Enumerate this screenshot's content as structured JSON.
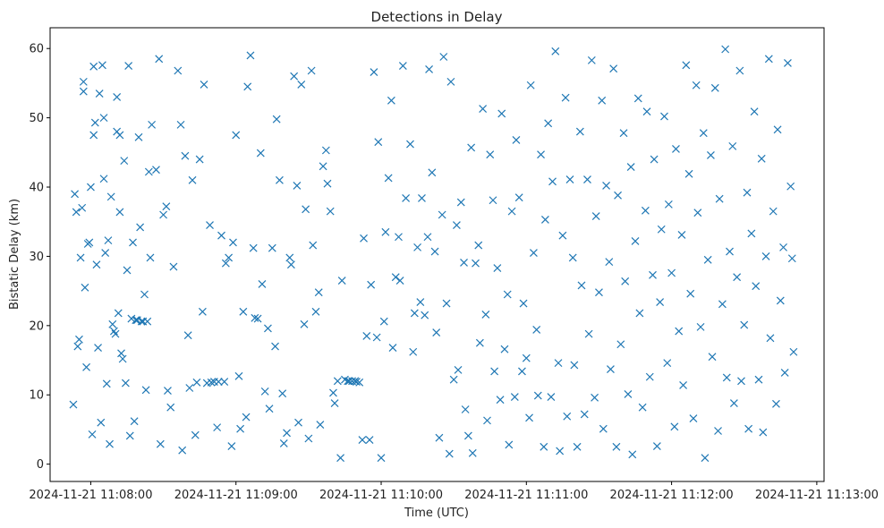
{
  "chart_data": {
    "type": "scatter",
    "title": "Detections in Delay",
    "xlabel": "Time (UTC)",
    "ylabel": "Bistatic Delay (km)",
    "marker": "x",
    "color": "#1f77b4",
    "xlim_minutes": [
      7.72,
      13.05
    ],
    "ylim": [
      -2.5,
      63
    ],
    "x_ticks": [
      {
        "minute": 8,
        "label": "2024-11-21 11:08:00"
      },
      {
        "minute": 9,
        "label": "2024-11-21 11:09:00"
      },
      {
        "minute": 10,
        "label": "2024-11-21 11:10:00"
      },
      {
        "minute": 11,
        "label": "2024-11-21 11:11:00"
      },
      {
        "minute": 12,
        "label": "2024-11-21 11:12:00"
      },
      {
        "minute": 13,
        "label": "2024-11-21 11:13:00"
      }
    ],
    "y_ticks": [
      0,
      10,
      20,
      30,
      40,
      50,
      60
    ],
    "x_unit": "minutes after 11:00:00 UTC",
    "points": [
      [
        7.88,
        8.6
      ],
      [
        7.89,
        39
      ],
      [
        7.9,
        36.4
      ],
      [
        7.91,
        17
      ],
      [
        7.92,
        18
      ],
      [
        7.93,
        29.8
      ],
      [
        7.94,
        37
      ],
      [
        7.95,
        55.2
      ],
      [
        7.95,
        53.8
      ],
      [
        7.96,
        25.5
      ],
      [
        7.97,
        14
      ],
      [
        7.98,
        31.8
      ],
      [
        7.99,
        32
      ],
      [
        8.0,
        40
      ],
      [
        8.01,
        4.3
      ],
      [
        8.02,
        57.4
      ],
      [
        8.02,
        47.5
      ],
      [
        8.03,
        49.3
      ],
      [
        8.04,
        28.8
      ],
      [
        8.05,
        16.8
      ],
      [
        8.06,
        53.5
      ],
      [
        8.07,
        6
      ],
      [
        8.08,
        57.6
      ],
      [
        8.09,
        50
      ],
      [
        8.09,
        41.2
      ],
      [
        8.1,
        30.5
      ],
      [
        8.11,
        11.6
      ],
      [
        8.12,
        32.3
      ],
      [
        8.13,
        2.9
      ],
      [
        8.14,
        38.6
      ],
      [
        8.15,
        20.2
      ],
      [
        8.16,
        19.2
      ],
      [
        8.17,
        18.8
      ],
      [
        8.18,
        53
      ],
      [
        8.18,
        48
      ],
      [
        8.19,
        21.8
      ],
      [
        8.2,
        36.4
      ],
      [
        8.2,
        47.5
      ],
      [
        8.21,
        16
      ],
      [
        8.22,
        15.2
      ],
      [
        8.23,
        43.8
      ],
      [
        8.24,
        11.7
      ],
      [
        8.25,
        28
      ],
      [
        8.26,
        57.5
      ],
      [
        8.27,
        4.1
      ],
      [
        8.28,
        21
      ],
      [
        8.29,
        32
      ],
      [
        8.3,
        6.2
      ],
      [
        8.31,
        20.8
      ],
      [
        8.32,
        20.8
      ],
      [
        8.33,
        47.2
      ],
      [
        8.34,
        34.2
      ],
      [
        8.35,
        20.6
      ],
      [
        8.36,
        20.6
      ],
      [
        8.37,
        24.5
      ],
      [
        8.38,
        10.7
      ],
      [
        8.39,
        20.6
      ],
      [
        8.4,
        42.2
      ],
      [
        8.41,
        29.8
      ],
      [
        8.42,
        49
      ],
      [
        8.45,
        42.5
      ],
      [
        8.47,
        58.5
      ],
      [
        8.48,
        2.9
      ],
      [
        8.5,
        36
      ],
      [
        8.52,
        37.2
      ],
      [
        8.53,
        10.6
      ],
      [
        8.55,
        8.2
      ],
      [
        8.57,
        28.5
      ],
      [
        8.6,
        56.8
      ],
      [
        8.62,
        49
      ],
      [
        8.63,
        2
      ],
      [
        8.65,
        44.5
      ],
      [
        8.67,
        18.6
      ],
      [
        8.68,
        11
      ],
      [
        8.7,
        41
      ],
      [
        8.72,
        4.2
      ],
      [
        8.73,
        11.8
      ],
      [
        8.75,
        44
      ],
      [
        8.77,
        22
      ],
      [
        8.78,
        54.8
      ],
      [
        8.8,
        11.7
      ],
      [
        8.82,
        34.5
      ],
      [
        8.83,
        11.8
      ],
      [
        8.85,
        11.9
      ],
      [
        8.87,
        5.3
      ],
      [
        8.88,
        11.9
      ],
      [
        8.9,
        33
      ],
      [
        8.92,
        11.9
      ],
      [
        8.93,
        29
      ],
      [
        8.95,
        29.8
      ],
      [
        8.97,
        2.6
      ],
      [
        8.98,
        32
      ],
      [
        9.0,
        47.5
      ],
      [
        9.02,
        12.7
      ],
      [
        9.03,
        5.1
      ],
      [
        9.05,
        22
      ],
      [
        9.07,
        6.8
      ],
      [
        9.08,
        54.5
      ],
      [
        9.1,
        59
      ],
      [
        9.12,
        31.2
      ],
      [
        9.13,
        21.1
      ],
      [
        9.15,
        21
      ],
      [
        9.17,
        44.9
      ],
      [
        9.18,
        26
      ],
      [
        9.2,
        10.5
      ],
      [
        9.22,
        19.6
      ],
      [
        9.23,
        8
      ],
      [
        9.25,
        31.2
      ],
      [
        9.27,
        17
      ],
      [
        9.28,
        49.8
      ],
      [
        9.3,
        41
      ],
      [
        9.32,
        10.2
      ],
      [
        9.33,
        3
      ],
      [
        9.35,
        4.5
      ],
      [
        9.37,
        29.8
      ],
      [
        9.38,
        28.8
      ],
      [
        9.4,
        56
      ],
      [
        9.42,
        40.2
      ],
      [
        9.43,
        6
      ],
      [
        9.45,
        54.8
      ],
      [
        9.47,
        20.2
      ],
      [
        9.48,
        36.8
      ],
      [
        9.5,
        3.7
      ],
      [
        9.52,
        56.8
      ],
      [
        9.53,
        31.6
      ],
      [
        9.55,
        22
      ],
      [
        9.57,
        24.8
      ],
      [
        9.58,
        5.7
      ],
      [
        9.6,
        43
      ],
      [
        9.62,
        45.3
      ],
      [
        9.63,
        40.5
      ],
      [
        9.65,
        36.5
      ],
      [
        9.67,
        10.3
      ],
      [
        9.68,
        8.8
      ],
      [
        9.7,
        12
      ],
      [
        9.72,
        0.9
      ],
      [
        9.73,
        26.5
      ],
      [
        9.75,
        12.2
      ],
      [
        9.77,
        12
      ],
      [
        9.78,
        12
      ],
      [
        9.8,
        12
      ],
      [
        9.82,
        12
      ],
      [
        9.83,
        11.9
      ],
      [
        9.85,
        11.8
      ],
      [
        9.87,
        3.5
      ],
      [
        9.88,
        32.6
      ],
      [
        9.9,
        18.5
      ],
      [
        9.92,
        3.5
      ],
      [
        9.93,
        25.9
      ],
      [
        9.95,
        56.6
      ],
      [
        9.97,
        18.3
      ],
      [
        9.98,
        46.5
      ],
      [
        10.0,
        0.9
      ],
      [
        10.02,
        20.6
      ],
      [
        10.03,
        33.5
      ],
      [
        10.05,
        41.3
      ],
      [
        10.07,
        52.5
      ],
      [
        10.08,
        16.8
      ],
      [
        10.1,
        27
      ],
      [
        10.12,
        32.8
      ],
      [
        10.13,
        26.5
      ],
      [
        10.15,
        57.5
      ],
      [
        10.17,
        38.4
      ],
      [
        10.2,
        46.2
      ],
      [
        10.22,
        16.2
      ],
      [
        10.23,
        21.8
      ],
      [
        10.25,
        31.3
      ],
      [
        10.27,
        23.4
      ],
      [
        10.28,
        38.4
      ],
      [
        10.3,
        21.5
      ],
      [
        10.32,
        32.8
      ],
      [
        10.33,
        57
      ],
      [
        10.35,
        42.1
      ],
      [
        10.37,
        30.7
      ],
      [
        10.38,
        19
      ],
      [
        10.4,
        3.8
      ],
      [
        10.42,
        36
      ],
      [
        10.43,
        58.8
      ],
      [
        10.45,
        23.2
      ],
      [
        10.47,
        1.5
      ],
      [
        10.48,
        55.2
      ],
      [
        10.5,
        12.2
      ],
      [
        10.52,
        34.5
      ],
      [
        10.53,
        13.6
      ],
      [
        10.55,
        37.8
      ],
      [
        10.57,
        29.1
      ],
      [
        10.58,
        7.9
      ],
      [
        10.6,
        4.1
      ],
      [
        10.62,
        45.7
      ],
      [
        10.63,
        1.6
      ],
      [
        10.65,
        29
      ],
      [
        10.67,
        31.6
      ],
      [
        10.68,
        17.5
      ],
      [
        10.7,
        51.3
      ],
      [
        10.72,
        21.6
      ],
      [
        10.73,
        6.3
      ],
      [
        10.75,
        44.7
      ],
      [
        10.77,
        38.1
      ],
      [
        10.78,
        13.4
      ],
      [
        10.8,
        28.3
      ],
      [
        10.82,
        9.3
      ],
      [
        10.83,
        50.6
      ],
      [
        10.85,
        16.6
      ],
      [
        10.87,
        24.5
      ],
      [
        10.88,
        2.8
      ],
      [
        10.9,
        36.5
      ],
      [
        10.92,
        9.7
      ],
      [
        10.93,
        46.8
      ],
      [
        10.95,
        38.5
      ],
      [
        10.97,
        13.4
      ],
      [
        10.98,
        23.2
      ],
      [
        11.0,
        15.3
      ],
      [
        11.02,
        6.7
      ],
      [
        11.03,
        54.7
      ],
      [
        11.05,
        30.5
      ],
      [
        11.07,
        19.4
      ],
      [
        11.08,
        9.9
      ],
      [
        11.1,
        44.7
      ],
      [
        11.12,
        2.5
      ],
      [
        11.13,
        35.3
      ],
      [
        11.15,
        49.2
      ],
      [
        11.17,
        9.7
      ],
      [
        11.18,
        40.8
      ],
      [
        11.2,
        59.6
      ],
      [
        11.22,
        14.6
      ],
      [
        11.23,
        1.9
      ],
      [
        11.25,
        33
      ],
      [
        11.27,
        52.9
      ],
      [
        11.28,
        6.9
      ],
      [
        11.3,
        41.1
      ],
      [
        11.32,
        29.8
      ],
      [
        11.33,
        14.3
      ],
      [
        11.35,
        2.5
      ],
      [
        11.37,
        48
      ],
      [
        11.38,
        25.8
      ],
      [
        11.4,
        7.2
      ],
      [
        11.42,
        41.1
      ],
      [
        11.43,
        18.8
      ],
      [
        11.45,
        58.3
      ],
      [
        11.47,
        9.6
      ],
      [
        11.48,
        35.8
      ],
      [
        11.5,
        24.8
      ],
      [
        11.52,
        52.5
      ],
      [
        11.53,
        5.1
      ],
      [
        11.55,
        40.2
      ],
      [
        11.57,
        29.2
      ],
      [
        11.58,
        13.7
      ],
      [
        11.6,
        57.1
      ],
      [
        11.62,
        2.5
      ],
      [
        11.63,
        38.8
      ],
      [
        11.65,
        17.3
      ],
      [
        11.67,
        47.8
      ],
      [
        11.68,
        26.4
      ],
      [
        11.7,
        10.1
      ],
      [
        11.72,
        42.9
      ],
      [
        11.73,
        1.4
      ],
      [
        11.75,
        32.2
      ],
      [
        11.77,
        52.8
      ],
      [
        11.78,
        21.8
      ],
      [
        11.8,
        8.2
      ],
      [
        11.82,
        36.6
      ],
      [
        11.83,
        50.9
      ],
      [
        11.85,
        12.6
      ],
      [
        11.87,
        27.3
      ],
      [
        11.88,
        44
      ],
      [
        11.9,
        2.6
      ],
      [
        11.92,
        23.4
      ],
      [
        11.93,
        33.9
      ],
      [
        11.95,
        50.2
      ],
      [
        11.97,
        14.6
      ],
      [
        11.98,
        37.5
      ],
      [
        12.0,
        27.6
      ],
      [
        12.02,
        5.4
      ],
      [
        12.03,
        45.5
      ],
      [
        12.05,
        19.2
      ],
      [
        12.07,
        33.1
      ],
      [
        12.08,
        11.4
      ],
      [
        12.1,
        57.6
      ],
      [
        12.12,
        41.9
      ],
      [
        12.13,
        24.6
      ],
      [
        12.15,
        6.6
      ],
      [
        12.17,
        54.7
      ],
      [
        12.18,
        36.3
      ],
      [
        12.2,
        19.8
      ],
      [
        12.22,
        47.8
      ],
      [
        12.23,
        0.9
      ],
      [
        12.25,
        29.5
      ],
      [
        12.27,
        44.6
      ],
      [
        12.28,
        15.5
      ],
      [
        12.3,
        54.3
      ],
      [
        12.32,
        4.8
      ],
      [
        12.33,
        38.3
      ],
      [
        12.35,
        23.1
      ],
      [
        12.37,
        59.9
      ],
      [
        12.38,
        12.5
      ],
      [
        12.4,
        30.7
      ],
      [
        12.42,
        45.9
      ],
      [
        12.43,
        8.8
      ],
      [
        12.45,
        27
      ],
      [
        12.47,
        56.8
      ],
      [
        12.48,
        12
      ],
      [
        12.5,
        20.1
      ],
      [
        12.52,
        39.2
      ],
      [
        12.53,
        5.1
      ],
      [
        12.55,
        33.3
      ],
      [
        12.57,
        50.9
      ],
      [
        12.58,
        25.7
      ],
      [
        12.6,
        12.2
      ],
      [
        12.62,
        44.1
      ],
      [
        12.63,
        4.6
      ],
      [
        12.65,
        30
      ],
      [
        12.67,
        58.5
      ],
      [
        12.68,
        18.2
      ],
      [
        12.7,
        36.5
      ],
      [
        12.72,
        8.7
      ],
      [
        12.73,
        48.3
      ],
      [
        12.75,
        23.6
      ],
      [
        12.77,
        31.3
      ],
      [
        12.78,
        13.2
      ],
      [
        12.8,
        57.9
      ],
      [
        12.82,
        40.1
      ],
      [
        12.83,
        29.7
      ],
      [
        12.84,
        16.2
      ]
    ]
  }
}
